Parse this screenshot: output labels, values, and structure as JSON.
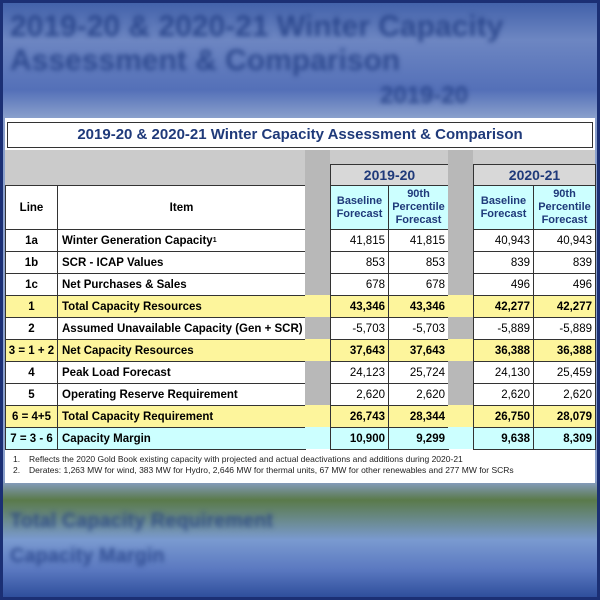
{
  "title": "2019-20 & 2020-21 Winter Capacity Assessment & Comparison",
  "years": [
    "2019-20",
    "2020-21"
  ],
  "headers": {
    "line": "Line",
    "item": "Item",
    "baseline": "Baseline Forecast",
    "p90": "90th Percentile Forecast"
  },
  "rows": [
    {
      "line": "1a",
      "item": "Winter Generation Capacity",
      "sup": "1",
      "v": [
        "41,815",
        "41,815",
        "40,943",
        "40,943"
      ],
      "style": "plain"
    },
    {
      "line": "1b",
      "item": "SCR - ICAP Values",
      "v": [
        "853",
        "853",
        "839",
        "839"
      ],
      "style": "plain"
    },
    {
      "line": "1c",
      "item": "Net Purchases & Sales",
      "v": [
        "678",
        "678",
        "496",
        "496"
      ],
      "style": "plain"
    },
    {
      "line": "1",
      "item": "Total Capacity Resources",
      "v": [
        "43,346",
        "43,346",
        "42,277",
        "42,277"
      ],
      "style": "yellow"
    },
    {
      "line": "2",
      "item": "Assumed Unavailable Capacity (Gen + SCR)",
      "v": [
        "-5,703",
        "-5,703",
        "-5,889",
        "-5,889"
      ],
      "style": "plain"
    },
    {
      "line": "3 = 1 + 2",
      "item": "Net Capacity Resources",
      "v": [
        "37,643",
        "37,643",
        "36,388",
        "36,388"
      ],
      "style": "yellow"
    },
    {
      "line": "4",
      "item": "Peak Load Forecast",
      "v": [
        "24,123",
        "25,724",
        "24,130",
        "25,459"
      ],
      "style": "plain"
    },
    {
      "line": "5",
      "item": "Operating Reserve Requirement",
      "v": [
        "2,620",
        "2,620",
        "2,620",
        "2,620"
      ],
      "style": "plain"
    },
    {
      "line": "6 = 4+5",
      "item": "Total Capacity Requirement",
      "v": [
        "26,743",
        "28,344",
        "26,750",
        "28,079"
      ],
      "style": "yellow"
    },
    {
      "line": "7 = 3 - 6",
      "item": "Capacity Margin",
      "v": [
        "10,900",
        "9,299",
        "9,638",
        "8,309"
      ],
      "style": "cyan"
    }
  ],
  "footnotes": [
    {
      "num": "1.",
      "text": "Reflects the 2020 Gold Book existing capacity with projected and actual deactivations and additions during 2020-21"
    },
    {
      "num": "2.",
      "text": "Derates: 1,263 MW for wind, 383 MW for Hydro, 2,646 MW for thermal units, 67 MW for other renewables and 277 MW for SCRs"
    }
  ],
  "colors": {
    "yellow": "#fdf59c",
    "cyan": "#ccffff",
    "title_text": "#1f3a7a",
    "frame": "#1b2f74"
  }
}
